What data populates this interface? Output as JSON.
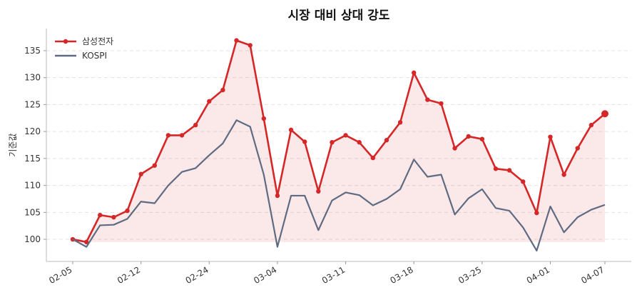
{
  "chart_data": {
    "type": "line",
    "title": "시장 대비 상대 강도",
    "y_label": "기준값",
    "categories": [
      "02-05",
      null,
      null,
      null,
      null,
      "02-12",
      null,
      null,
      null,
      null,
      "02-24",
      null,
      null,
      null,
      null,
      "03-04",
      null,
      null,
      null,
      null,
      "03-11",
      null,
      null,
      null,
      null,
      "03-18",
      null,
      null,
      null,
      null,
      "03-25",
      null,
      null,
      null,
      null,
      "04-01",
      null,
      null,
      null,
      "04-07"
    ],
    "series": [
      {
        "name": "삼성전자",
        "color": "#d62728",
        "markers": true,
        "fill": true,
        "values": [
          100,
          99.5,
          104.5,
          104.1,
          105.3,
          112.1,
          113.7,
          119.3,
          119.3,
          121.2,
          125.6,
          127.7,
          136.9,
          136.0,
          122.4,
          108.1,
          120.3,
          118.1,
          108.9,
          118.0,
          119.3,
          118.0,
          115.1,
          118.4,
          121.7,
          130.9,
          125.9,
          125.2,
          116.9,
          119.1,
          118.6,
          113.1,
          112.8,
          110.7,
          104.9,
          119.0,
          112.0,
          116.9,
          121.2,
          123.3
        ]
      },
      {
        "name": "KOSPI",
        "color": "#5f6b82",
        "markers": false,
        "fill": false,
        "values": [
          100,
          98.6,
          102.6,
          102.7,
          103.8,
          107.0,
          106.7,
          110.0,
          112.5,
          113.2,
          115.6,
          117.8,
          122.1,
          120.9,
          112.0,
          98.6,
          108.1,
          108.1,
          101.7,
          107.2,
          108.7,
          108.2,
          106.3,
          107.5,
          109.3,
          114.8,
          111.6,
          112.0,
          104.6,
          107.6,
          109.3,
          105.8,
          105.3,
          102.2,
          97.9,
          106.1,
          101.3,
          104.1,
          105.5,
          106.4
        ]
      }
    ],
    "ylim": [
      95.9,
      139.1
    ],
    "yticks": [
      100,
      105,
      110,
      115,
      120,
      125,
      130,
      135
    ],
    "grid": true,
    "legend": "upper-left"
  }
}
